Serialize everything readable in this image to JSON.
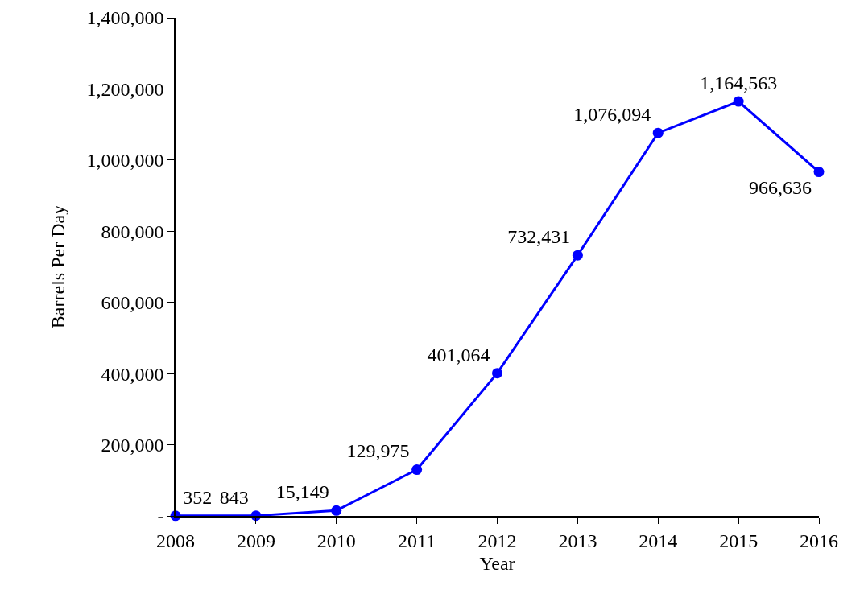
{
  "chart_data": {
    "type": "line",
    "xlabel": "Year",
    "ylabel": "Barrels Per Day",
    "x": [
      2008,
      2009,
      2010,
      2011,
      2012,
      2013,
      2014,
      2015,
      2016
    ],
    "xlim": [
      2008,
      2016
    ],
    "xticks": [
      2008,
      2009,
      2010,
      2011,
      2012,
      2013,
      2014,
      2015,
      2016
    ],
    "ylim": [
      0,
      1400000
    ],
    "yticks": [
      {
        "value": 0,
        "label": "-"
      },
      {
        "value": 200000,
        "label": "200,000"
      },
      {
        "value": 400000,
        "label": "400,000"
      },
      {
        "value": 600000,
        "label": "600,000"
      },
      {
        "value": 800000,
        "label": "800,000"
      },
      {
        "value": 1000000,
        "label": "1,000,000"
      },
      {
        "value": 1200000,
        "label": "1,200,000"
      },
      {
        "value": 1400000,
        "label": "1,400,000"
      }
    ],
    "series": [
      {
        "color": "#0000ff",
        "values": [
          352,
          843,
          15149,
          129975,
          401064,
          732431,
          1076094,
          1164563,
          966636
        ],
        "value_labels": [
          "352",
          "843",
          "15,149",
          "129,975",
          "401,064",
          "732,431",
          "1,076,094",
          "1,164,563",
          "966,636"
        ]
      }
    ],
    "marker": "circle",
    "line_style": "solid",
    "grid": false
  }
}
